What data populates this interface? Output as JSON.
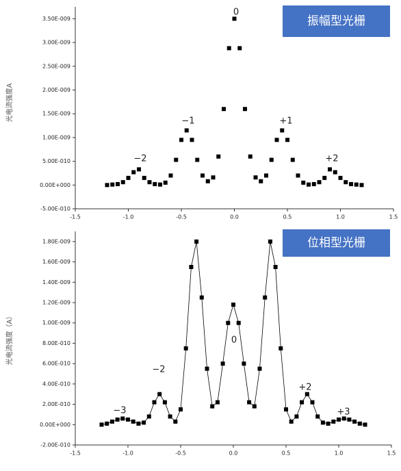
{
  "chart_data": [
    {
      "type": "scatter",
      "title": "振幅型光栅",
      "y_label": "光电流强度A",
      "annotations": [
        "0",
        "−1",
        "+1",
        "−2",
        "+2"
      ],
      "x": [
        -1.2,
        -1.15,
        -1.1,
        -1.05,
        -1,
        -0.95,
        -0.9,
        -0.85,
        -0.8,
        -0.75,
        -0.7,
        -0.65,
        -0.6,
        -0.55,
        -0.5,
        -0.45,
        -0.4,
        -0.35,
        -0.3,
        -0.25,
        -0.2,
        -0.15,
        -0.1,
        -0.05,
        0,
        0.05,
        0.1,
        0.15,
        0.2,
        0.25,
        0.3,
        0.35,
        0.4,
        0.45,
        0.5,
        0.55,
        0.6,
        0.65,
        0.7,
        0.75,
        0.8,
        0.85,
        0.9,
        0.95,
        1,
        1.05,
        1.1,
        1.15,
        1.2
      ],
      "series": [
        {
          "color": "#000000",
          "values": [
            0,
            1e-11,
            2e-11,
            6e-11,
            1.5e-10,
            2.7e-10,
            3.3e-10,
            1.5e-10,
            6e-11,
            2e-11,
            1e-11,
            5e-11,
            2e-10,
            5.3e-10,
            9.5e-10,
            1.15e-09,
            9.5e-10,
            5.3e-10,
            2e-10,
            8e-11,
            1.6e-10,
            6e-10,
            1.6e-09,
            2.88e-09,
            3.5e-09,
            2.88e-09,
            1.6e-09,
            6e-10,
            1.6e-10,
            8e-11,
            2e-10,
            5.3e-10,
            9.5e-10,
            1.15e-09,
            9.5e-10,
            5.3e-10,
            2e-10,
            5e-11,
            1e-11,
            2e-11,
            6e-11,
            1.5e-10,
            3.3e-10,
            2.7e-10,
            1.5e-10,
            6e-11,
            2e-11,
            1e-11,
            0
          ]
        }
      ],
      "line": false,
      "xlim": [
        -1.5,
        1.5
      ],
      "ylim": [
        -5e-10,
        3.75e-09
      ],
      "xticks": [
        -1.5,
        {
          "value": -1,
          "label": "-1.0"
        },
        -0.5,
        {
          "value": 0,
          "label": "0.0"
        },
        0.5,
        {
          "value": 1,
          "label": "1.0"
        },
        1.5
      ],
      "yticks": [
        {
          "value": 3.5e-09,
          "label": "3.50E-009"
        },
        {
          "value": 3e-09,
          "label": "3.00E-009"
        },
        {
          "value": 2.5e-09,
          "label": "2.50E-009"
        },
        {
          "value": 2e-09,
          "label": "2.00E-009"
        },
        {
          "value": 1.5e-09,
          "label": "1.50E-009"
        },
        {
          "value": 1e-09,
          "label": "1.00E-009"
        },
        {
          "value": 5e-10,
          "label": "5.00E-010"
        },
        {
          "value": 0,
          "label": "0.00E+000"
        },
        {
          "value": -5e-10,
          "label": "-5.00E-010"
        }
      ]
    },
    {
      "type": "scatter",
      "title": "位相型光栅",
      "y_label": "光电流强度（A）",
      "annotations": [
        "0",
        "−2",
        "+2",
        "−3",
        "+3"
      ],
      "x": [
        -1.25,
        -1.2,
        -1.15,
        -1.1,
        -1.05,
        -1,
        -0.95,
        -0.9,
        -0.85,
        -0.8,
        -0.75,
        -0.7,
        -0.65,
        -0.6,
        -0.55,
        -0.5,
        -0.45,
        -0.4,
        -0.35,
        -0.3,
        -0.25,
        -0.2,
        -0.15,
        -0.1,
        -0.05,
        0,
        0.05,
        0.1,
        0.15,
        0.2,
        0.25,
        0.3,
        0.35,
        0.4,
        0.45,
        0.5,
        0.55,
        0.6,
        0.65,
        0.7,
        0.75,
        0.8,
        0.85,
        0.9,
        0.95,
        1,
        1.05,
        1.1,
        1.15,
        1.2,
        1.25
      ],
      "series": [
        {
          "color": "#000000",
          "values": [
            0,
            1e-11,
            3e-11,
            5e-11,
            6e-11,
            5e-11,
            3e-11,
            1e-11,
            2e-11,
            8e-11,
            2.2e-10,
            3e-10,
            2.2e-10,
            8e-11,
            3e-11,
            1.5e-10,
            7.5e-10,
            1.55e-09,
            1.8e-09,
            1.25e-09,
            5.5e-10,
            1.8e-10,
            2.2e-10,
            6e-10,
            1e-09,
            1.18e-09,
            1e-09,
            6e-10,
            2.2e-10,
            1.8e-10,
            5.5e-10,
            1.25e-09,
            1.8e-09,
            1.55e-09,
            7.5e-10,
            1.5e-10,
            3e-11,
            8e-11,
            2.2e-10,
            3e-10,
            2.2e-10,
            8e-11,
            2e-11,
            1e-11,
            3e-11,
            5e-11,
            6e-11,
            5e-11,
            3e-11,
            1e-11,
            0
          ]
        }
      ],
      "line": true,
      "xlim": [
        -1.5,
        1.5
      ],
      "ylim": [
        -2e-10,
        1.9e-09
      ],
      "xticks": [
        -1.5,
        {
          "value": -1,
          "label": "-1.0"
        },
        -0.5,
        {
          "value": 0,
          "label": "0.0"
        },
        0.5,
        {
          "value": 1,
          "label": "1.0"
        },
        1.5
      ],
      "yticks": [
        {
          "value": 1.8e-09,
          "label": "1.80E-009"
        },
        {
          "value": 1.6e-09,
          "label": "1.60E-009"
        },
        {
          "value": 1.4e-09,
          "label": "1.40E-009"
        },
        {
          "value": 1.2e-09,
          "label": "1.20E-009"
        },
        {
          "value": 1e-09,
          "label": "1.00E-009"
        },
        {
          "value": 8e-10,
          "label": "8.00E-010"
        },
        {
          "value": 6e-10,
          "label": "6.00E-010"
        },
        {
          "value": 4e-10,
          "label": "4.00E-010"
        },
        {
          "value": 2e-10,
          "label": "2.00E-010"
        },
        {
          "value": 0,
          "label": "0.00E+000"
        },
        {
          "value": -2e-10,
          "label": "-2.00E-010"
        }
      ]
    }
  ]
}
